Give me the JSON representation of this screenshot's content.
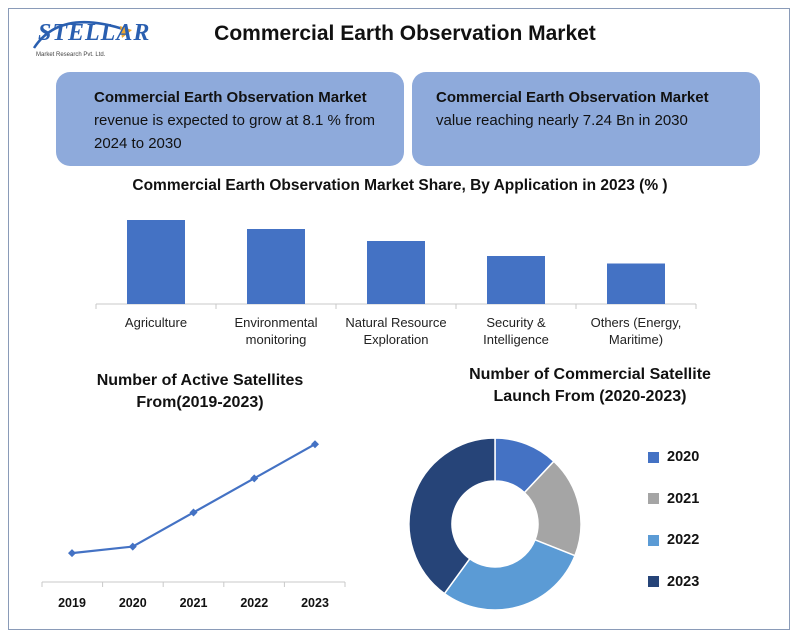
{
  "header": {
    "logo_text": "STELLAR",
    "logo_subtext": "Market Research Pvt. Ltd.",
    "title": "Commercial Earth Observation Market"
  },
  "info_boxes": [
    {
      "heading": "Commercial Earth Observation Market",
      "body": "revenue is expected to grow at 8.1 % from 2024 to 2030"
    },
    {
      "heading": "Commercial Earth Observation Market",
      "body": "value reaching nearly 7.24 Bn in 2030"
    }
  ],
  "colors": {
    "bar": "#4472c4",
    "box": "#8eaadb",
    "line": "#4472c4",
    "donut": [
      "#4472c4",
      "#a5a5a5",
      "#5b9bd5",
      "#264478"
    ]
  },
  "chart_data": [
    {
      "type": "bar",
      "title": "Commercial Earth Observation Market Share, By Application in 2023 (% )",
      "categories": [
        "Agriculture",
        "Environmental monitoring",
        "Natural Resource Exploration",
        "Security & Intelligence",
        "Others (Energy, Maritime)"
      ],
      "values": [
        28,
        25,
        21,
        16,
        13.5
      ],
      "ylim": [
        0,
        30
      ],
      "grid": false
    },
    {
      "type": "line",
      "title": "Number of Active Satellites From(2019-2023)",
      "x": [
        "2019",
        "2020",
        "2021",
        "2022",
        "2023"
      ],
      "values": [
        2200,
        2700,
        5300,
        7900,
        10500
      ],
      "ylim": [
        0,
        16000
      ],
      "grid": false
    },
    {
      "type": "pie",
      "title": "Number of Commercial Satellite Launch From (2020-2023)",
      "labels": [
        "2020",
        "2021",
        "2022",
        "2023"
      ],
      "values": [
        12,
        19,
        29,
        40
      ],
      "legend": "right"
    }
  ]
}
